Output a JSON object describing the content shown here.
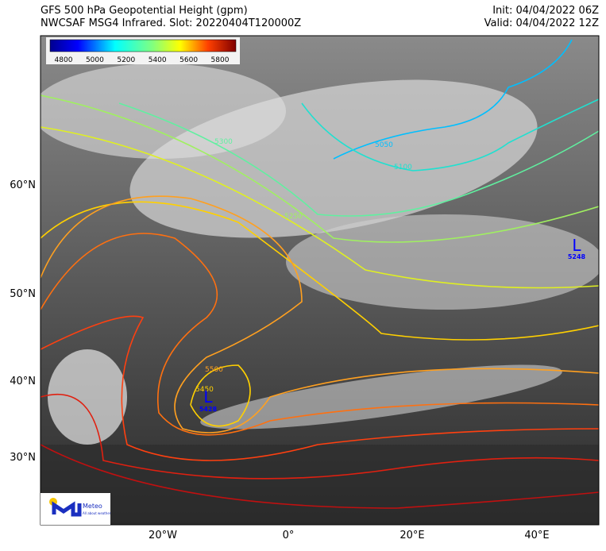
{
  "header": {
    "title_lines": [
      "GFS 500 hPa Geopotential Height (gpm)",
      "NWCSAF MSG4 Infrared. Slot: 20220404T120000Z"
    ],
    "init": "Init: 04/04/2022 06Z",
    "valid": "Valid: 04/04/2022 12Z"
  },
  "colorbar": {
    "ticks": [
      4800,
      5000,
      5200,
      5400,
      5600,
      5800
    ]
  },
  "latitude_labels": [
    "60°N",
    "50°N",
    "40°N",
    "30°N"
  ],
  "longitude_labels": [
    "20°W",
    "0°",
    "20°E",
    "40°E"
  ],
  "contour_labels": [
    5050,
    5100,
    5250,
    5300,
    5500,
    5450
  ],
  "lows": [
    {
      "symbol": "L",
      "value": 5428
    },
    {
      "symbol": "L",
      "value": 5248
    }
  ],
  "logo": {
    "name": "Meteo",
    "tagline": "All about weather"
  }
}
